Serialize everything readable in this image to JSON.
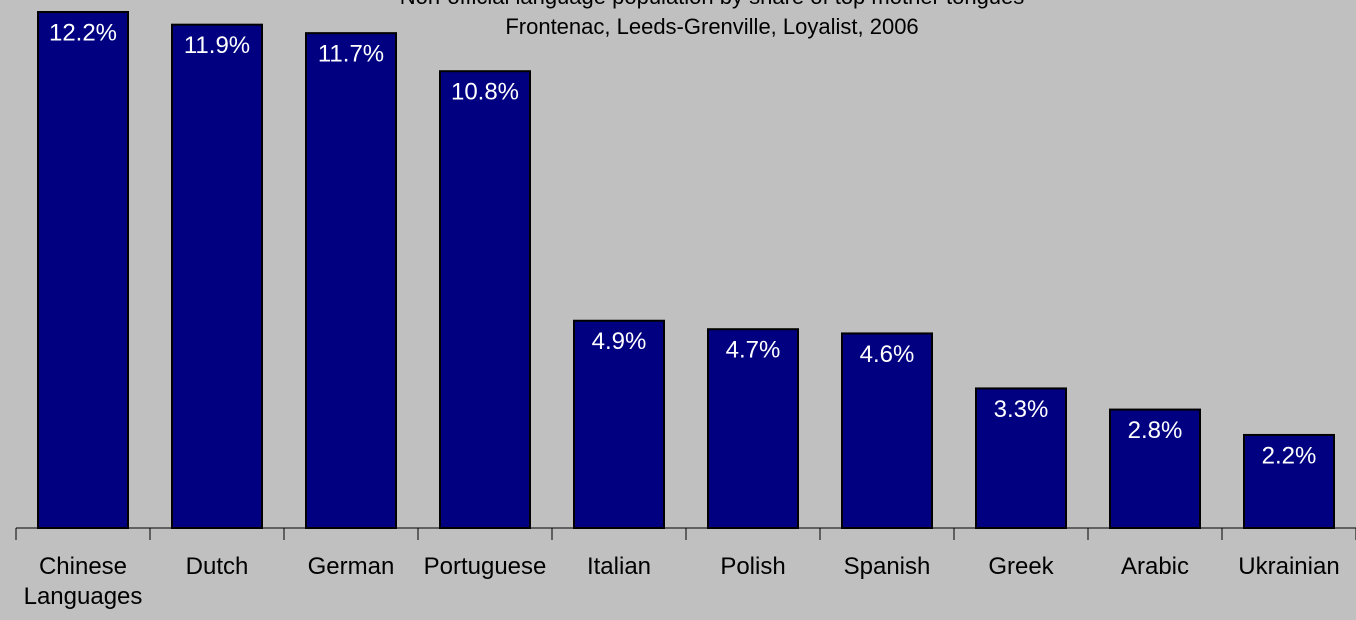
{
  "chart_data": {
    "type": "bar",
    "title": "Non-official language population by share of top mother tongues",
    "subtitle": "Frontenac, Leeds-Grenville, Loyalist, 2006",
    "categories": [
      "Chinese Languages",
      "Dutch",
      "German",
      "Portuguese",
      "Italian",
      "Polish",
      "Spanish",
      "Greek",
      "Arabic",
      "Ukrainian"
    ],
    "values": [
      12.2,
      11.9,
      11.7,
      10.8,
      4.9,
      4.7,
      4.6,
      3.3,
      2.8,
      2.2
    ],
    "value_labels": [
      "12.2%",
      "11.9%",
      "11.7%",
      "10.8%",
      "4.9%",
      "4.7%",
      "4.6%",
      "3.3%",
      "2.8%",
      "2.2%"
    ],
    "color": "#000080",
    "ylim": [
      0,
      12.2
    ]
  }
}
